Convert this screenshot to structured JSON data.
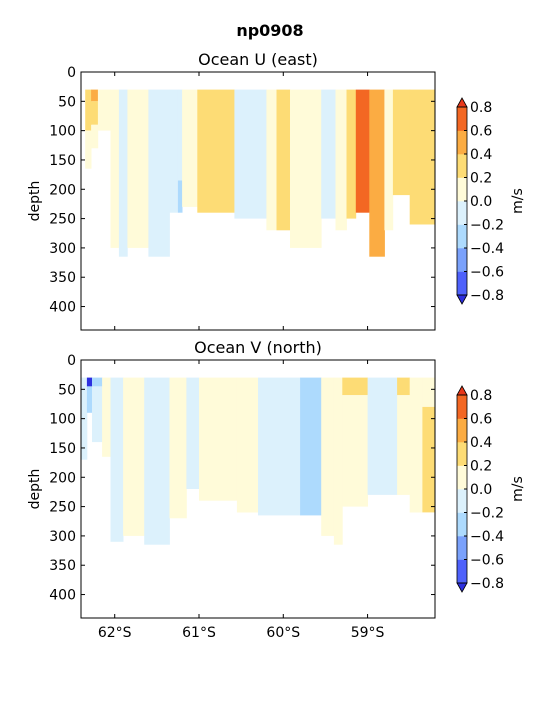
{
  "figure": {
    "title": "np0908"
  },
  "colors": {
    "levels": [
      -0.8,
      -0.6,
      -0.4,
      -0.2,
      0.0,
      0.2,
      0.4,
      0.6,
      0.8
    ],
    "bands": [
      "#4e61fb",
      "#7aa1fb",
      "#addafd",
      "#dcf1fc",
      "#fffbd9",
      "#fddc75",
      "#fbac43",
      "#f36723"
    ],
    "under": "#2d2fdf",
    "over": "#e8381a"
  },
  "chart_data": [
    {
      "type": "heatmap",
      "title": "Ocean U (east)",
      "ylabel": "depth",
      "ylim": [
        0,
        440
      ],
      "y_inverted": true,
      "xlim": [
        -62.4,
        -58.2
      ],
      "x_ticks": [
        {
          "value": -62,
          "label": "62°S"
        },
        {
          "value": -61,
          "label": "61°S"
        },
        {
          "value": -60,
          "label": "60°S"
        },
        {
          "value": -59,
          "label": "59°S"
        }
      ],
      "y_ticks": [
        0,
        50,
        100,
        150,
        200,
        250,
        300,
        350,
        400
      ],
      "colorbar": {
        "label": "m/s",
        "ticks": [
          "0.8",
          "0.6",
          "0.4",
          "0.2",
          "0.0",
          "−0.2",
          "−0.4",
          "−0.6",
          "−0.8"
        ]
      },
      "cells": [
        {
          "x0": -62.35,
          "x1": -62.28,
          "d0": 30,
          "d1": 100,
          "v": 0.3
        },
        {
          "x0": -62.35,
          "x1": -62.28,
          "d0": 100,
          "d1": 165,
          "v": 0.1
        },
        {
          "x0": -62.28,
          "x1": -62.2,
          "d0": 30,
          "d1": 50,
          "v": 0.5
        },
        {
          "x0": -62.28,
          "x1": -62.2,
          "d0": 50,
          "d1": 90,
          "v": 0.3
        },
        {
          "x0": -62.28,
          "x1": -62.2,
          "d0": 90,
          "d1": 130,
          "v": 0.1
        },
        {
          "x0": -62.2,
          "x1": -62.05,
          "d0": 30,
          "d1": 100,
          "v": 0.1
        },
        {
          "x0": -62.05,
          "x1": -61.95,
          "d0": 30,
          "d1": 300,
          "v": 0.1
        },
        {
          "x0": -61.95,
          "x1": -61.85,
          "d0": 30,
          "d1": 315,
          "v": -0.1
        },
        {
          "x0": -61.85,
          "x1": -61.6,
          "d0": 30,
          "d1": 300,
          "v": 0.1
        },
        {
          "x0": -61.6,
          "x1": -61.35,
          "d0": 30,
          "d1": 315,
          "v": -0.1
        },
        {
          "x0": -61.35,
          "x1": -61.25,
          "d0": 30,
          "d1": 240,
          "v": -0.1
        },
        {
          "x0": -61.25,
          "x1": -61.2,
          "d0": 185,
          "d1": 240,
          "v": -0.3
        },
        {
          "x0": -61.25,
          "x1": -61.2,
          "d0": 30,
          "d1": 185,
          "v": -0.1
        },
        {
          "x0": -61.2,
          "x1": -61.02,
          "d0": 30,
          "d1": 230,
          "v": 0.1
        },
        {
          "x0": -61.02,
          "x1": -60.58,
          "d0": 30,
          "d1": 240,
          "v": 0.3
        },
        {
          "x0": -60.58,
          "x1": -60.2,
          "d0": 30,
          "d1": 250,
          "v": -0.1
        },
        {
          "x0": -60.2,
          "x1": -60.08,
          "d0": 30,
          "d1": 270,
          "v": 0.1
        },
        {
          "x0": -60.08,
          "x1": -59.92,
          "d0": 30,
          "d1": 270,
          "v": 0.3
        },
        {
          "x0": -59.92,
          "x1": -59.55,
          "d0": 30,
          "d1": 300,
          "v": 0.1
        },
        {
          "x0": -59.55,
          "x1": -59.38,
          "d0": 30,
          "d1": 250,
          "v": -0.1
        },
        {
          "x0": -59.38,
          "x1": -59.25,
          "d0": 30,
          "d1": 270,
          "v": 0.1
        },
        {
          "x0": -59.25,
          "x1": -59.14,
          "d0": 30,
          "d1": 250,
          "v": 0.3
        },
        {
          "x0": -59.14,
          "x1": -58.98,
          "d0": 30,
          "d1": 240,
          "v": 0.7
        },
        {
          "x0": -58.98,
          "x1": -58.8,
          "d0": 30,
          "d1": 315,
          "v": 0.5
        },
        {
          "x0": -58.8,
          "x1": -58.7,
          "d0": 30,
          "d1": 270,
          "v": 0.1
        },
        {
          "x0": -58.7,
          "x1": -58.5,
          "d0": 30,
          "d1": 210,
          "v": 0.3
        },
        {
          "x0": -58.5,
          "x1": -58.2,
          "d0": 30,
          "d1": 260,
          "v": 0.3
        }
      ]
    },
    {
      "type": "heatmap",
      "title": "Ocean V (north)",
      "ylabel": "depth",
      "ylim": [
        0,
        440
      ],
      "y_inverted": true,
      "xlim": [
        -62.4,
        -58.2
      ],
      "x_ticks": [
        {
          "value": -62,
          "label": "62°S"
        },
        {
          "value": -61,
          "label": "61°S"
        },
        {
          "value": -60,
          "label": "60°S"
        },
        {
          "value": -59,
          "label": "59°S"
        }
      ],
      "y_ticks": [
        0,
        50,
        100,
        150,
        200,
        250,
        300,
        350,
        400
      ],
      "colorbar": {
        "label": "m/s",
        "ticks": [
          "0.8",
          "0.6",
          "0.4",
          "0.2",
          "0.0",
          "−0.2",
          "−0.4",
          "−0.6",
          "−0.8"
        ]
      },
      "cells": [
        {
          "x0": -62.4,
          "x1": -62.33,
          "d0": 30,
          "d1": 170,
          "v": -0.1
        },
        {
          "x0": -62.33,
          "x1": -62.27,
          "d0": 30,
          "d1": 45,
          "v": -0.9
        },
        {
          "x0": -62.33,
          "x1": -62.27,
          "d0": 45,
          "d1": 90,
          "v": -0.3
        },
        {
          "x0": -62.27,
          "x1": -62.15,
          "d0": 30,
          "d1": 45,
          "v": -0.3
        },
        {
          "x0": -62.27,
          "x1": -62.15,
          "d0": 45,
          "d1": 140,
          "v": -0.1
        },
        {
          "x0": -62.15,
          "x1": -62.05,
          "d0": 30,
          "d1": 165,
          "v": 0.1
        },
        {
          "x0": -62.05,
          "x1": -61.9,
          "d0": 30,
          "d1": 310,
          "v": -0.1
        },
        {
          "x0": -61.9,
          "x1": -61.65,
          "d0": 30,
          "d1": 300,
          "v": 0.1
        },
        {
          "x0": -61.65,
          "x1": -61.35,
          "d0": 30,
          "d1": 315,
          "v": -0.1
        },
        {
          "x0": -61.35,
          "x1": -61.15,
          "d0": 30,
          "d1": 270,
          "v": 0.1
        },
        {
          "x0": -61.15,
          "x1": -61.0,
          "d0": 30,
          "d1": 220,
          "v": -0.1
        },
        {
          "x0": -61.0,
          "x1": -60.55,
          "d0": 30,
          "d1": 240,
          "v": 0.1
        },
        {
          "x0": -60.55,
          "x1": -60.3,
          "d0": 30,
          "d1": 260,
          "v": 0.1
        },
        {
          "x0": -60.3,
          "x1": -59.8,
          "d0": 30,
          "d1": 265,
          "v": -0.1
        },
        {
          "x0": -59.8,
          "x1": -59.55,
          "d0": 30,
          "d1": 265,
          "v": -0.3
        },
        {
          "x0": -59.55,
          "x1": -59.4,
          "d0": 30,
          "d1": 300,
          "v": 0.1
        },
        {
          "x0": -59.4,
          "x1": -59.3,
          "d0": 30,
          "d1": 315,
          "v": 0.1
        },
        {
          "x0": -59.3,
          "x1": -59.0,
          "d0": 30,
          "d1": 60,
          "v": 0.3
        },
        {
          "x0": -59.3,
          "x1": -59.0,
          "d0": 60,
          "d1": 250,
          "v": 0.1
        },
        {
          "x0": -59.0,
          "x1": -58.65,
          "d0": 30,
          "d1": 230,
          "v": -0.1
        },
        {
          "x0": -58.65,
          "x1": -58.5,
          "d0": 30,
          "d1": 60,
          "v": 0.3
        },
        {
          "x0": -58.65,
          "x1": -58.5,
          "d0": 60,
          "d1": 230,
          "v": 0.1
        },
        {
          "x0": -58.5,
          "x1": -58.35,
          "d0": 30,
          "d1": 260,
          "v": 0.1
        },
        {
          "x0": -58.35,
          "x1": -58.2,
          "d0": 30,
          "d1": 80,
          "v": 0.1
        },
        {
          "x0": -58.35,
          "x1": -58.2,
          "d0": 80,
          "d1": 260,
          "v": 0.3
        }
      ]
    }
  ]
}
